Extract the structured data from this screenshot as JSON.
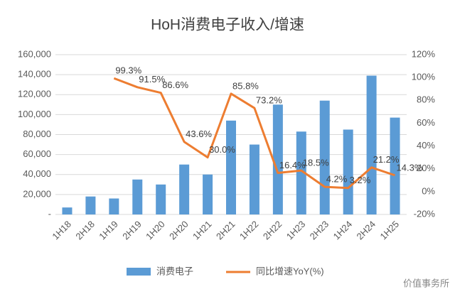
{
  "chart_data": {
    "type": "bar_line",
    "title": "HoH消费电子收入/增速",
    "categories": [
      "1H18",
      "2H18",
      "1H19",
      "2H19",
      "1H20",
      "2H20",
      "1H21",
      "2H21",
      "1H22",
      "2H22",
      "1H23",
      "2H23",
      "1H24",
      "2H24",
      "1H25"
    ],
    "series": [
      {
        "name": "消费电子",
        "type": "bar",
        "color": "#5b9bd5",
        "values": [
          7000,
          18000,
          16000,
          35000,
          30000,
          50000,
          40000,
          94000,
          70000,
          110000,
          83000,
          114000,
          85000,
          139000,
          97000
        ]
      },
      {
        "name": "同比增速YoY(%)",
        "type": "line",
        "axis": "y2",
        "color": "#ed7d31",
        "values": [
          null,
          null,
          99.3,
          91.5,
          86.6,
          43.6,
          30.0,
          85.8,
          73.2,
          16.4,
          18.5,
          4.2,
          3.2,
          21.2,
          14.3
        ],
        "value_labels": [
          null,
          null,
          "99.3%",
          "91.5%",
          "86.6%",
          "43.6%",
          "30.0%",
          "85.8%",
          "73.2%",
          "16.4%",
          "18.5%",
          "4.2%",
          "3.2%",
          "21.2%",
          "14.3%"
        ]
      }
    ],
    "ylim": [
      0,
      160000
    ],
    "yticks": [
      {
        "value": 0,
        "label": "-"
      },
      {
        "value": 20000,
        "label": "20,000"
      },
      {
        "value": 40000,
        "label": "40,000"
      },
      {
        "value": 60000,
        "label": "60,000"
      },
      {
        "value": 80000,
        "label": "80,000"
      },
      {
        "value": 100000,
        "label": "100,000"
      },
      {
        "value": 120000,
        "label": "120,000"
      },
      {
        "value": 140000,
        "label": "140,000"
      },
      {
        "value": 160000,
        "label": "160,000"
      }
    ],
    "y2lim": [
      -20,
      120
    ],
    "y2ticks": [
      {
        "value": -20,
        "label": "-20%"
      },
      {
        "value": 0,
        "label": "0%"
      },
      {
        "value": 20,
        "label": "20%"
      },
      {
        "value": 40,
        "label": "40%"
      },
      {
        "value": 60,
        "label": "60%"
      },
      {
        "value": 80,
        "label": "80%"
      },
      {
        "value": 100,
        "label": "100%"
      },
      {
        "value": 120,
        "label": "120%"
      }
    ],
    "grid": true,
    "legend": "bottom",
    "watermark": "价值事务所"
  }
}
